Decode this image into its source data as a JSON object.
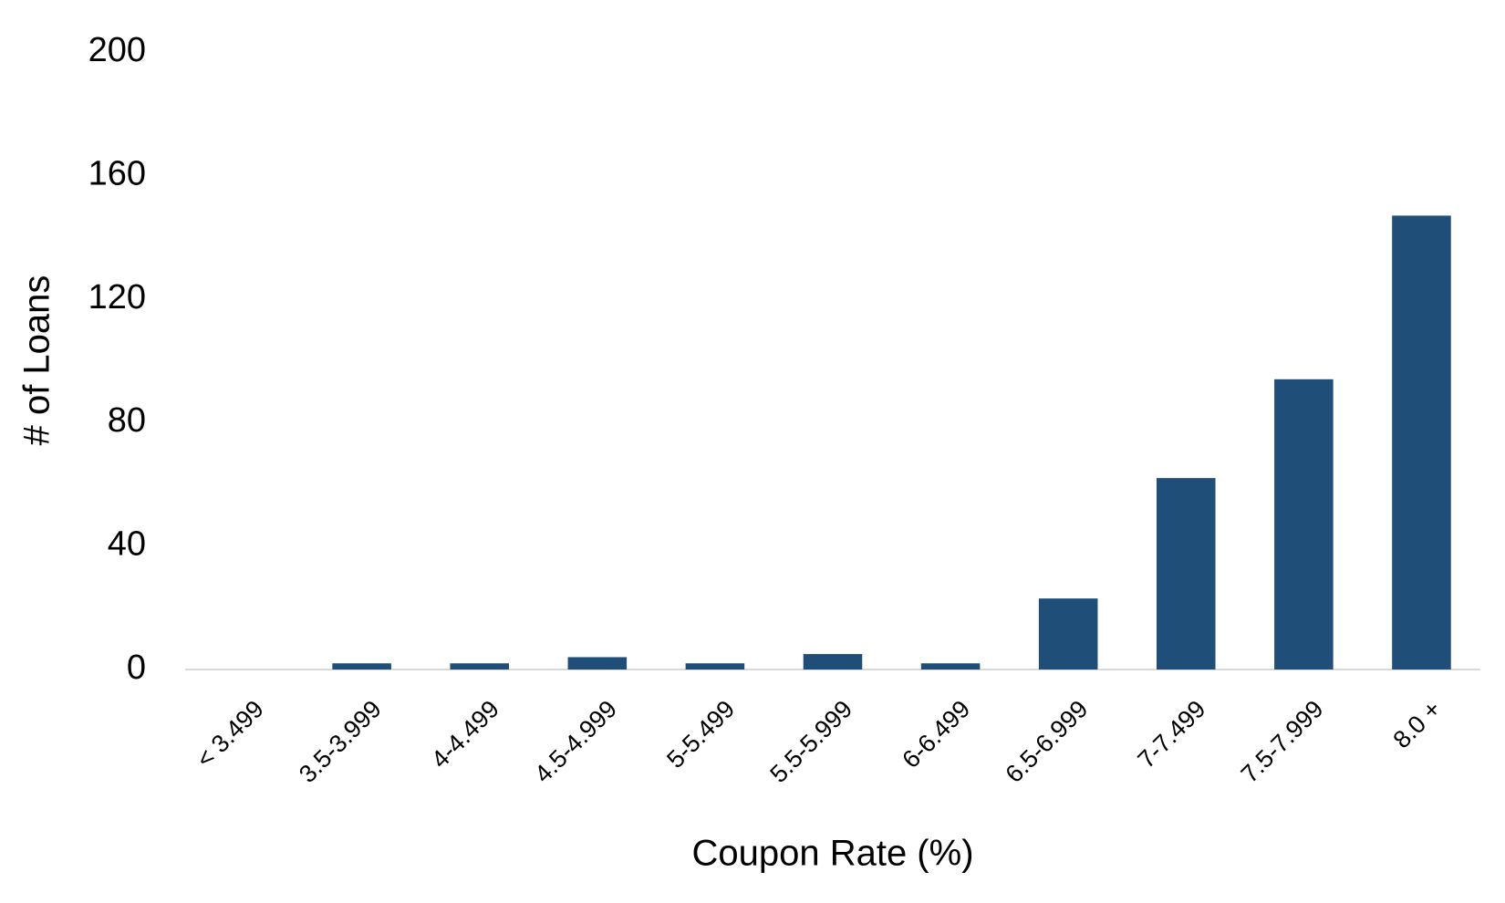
{
  "chart_data": {
    "type": "bar",
    "x_label": "Coupon Rate (%)",
    "y_label": "# of Loans",
    "categories": [
      "< 3.499",
      "3.5-3.999",
      "4-4.499",
      "4.5-4.999",
      "5-5.499",
      "5.5-5.999",
      "6-6.499",
      "6.5-6.999",
      "7-7.499",
      "7.5-7.999",
      "8.0 +"
    ],
    "values": [
      0,
      2,
      2,
      4,
      2,
      5,
      2,
      23,
      62,
      94,
      147
    ],
    "color": "#1f4e79",
    "ylim": [
      0,
      200
    ],
    "yticks": [
      0,
      40,
      80,
      120,
      160,
      200
    ],
    "grid": false
  }
}
